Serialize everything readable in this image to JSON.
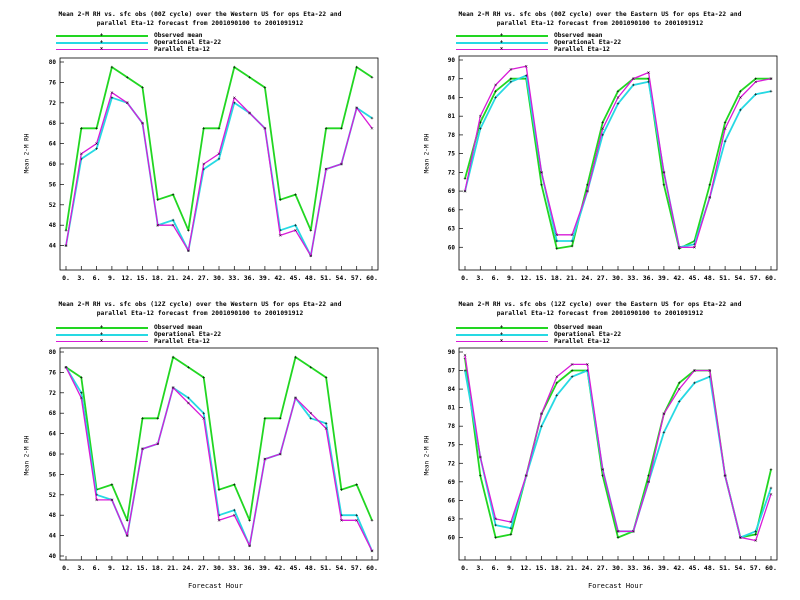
{
  "ylabel": "Mean 2-M RH",
  "xlabel": "Forecast Hour",
  "legend": [
    {
      "name": "Observed mean",
      "color": "#22d622"
    },
    {
      "name": "Operational Eta-22",
      "color": "#26d9e3"
    },
    {
      "name": "Parallel Eta-12",
      "color": "#d81bd8"
    }
  ],
  "x_ticks": [
    "0.",
    "3.",
    "6.",
    "9.",
    "12.",
    "15.",
    "18.",
    "21.",
    "24.",
    "27.",
    "30.",
    "33.",
    "36.",
    "39.",
    "42.",
    "45.",
    "48.",
    "51.",
    "54.",
    "57.",
    "60."
  ],
  "panels": [
    {
      "title_lines": [
        "Mean 2-M RH vs. sfc obs (00Z cycle) over the Western US for ops Eta-22 and",
        "parallel Eta-12 forecast from 2001090100 to 2001091912"
      ],
      "chart_data": {
        "type": "line",
        "x": [
          0,
          3,
          6,
          9,
          12,
          15,
          18,
          21,
          24,
          27,
          30,
          33,
          36,
          39,
          42,
          45,
          48,
          51,
          54,
          57,
          60
        ],
        "ylim": [
          40,
          80
        ],
        "yticks": [
          "44",
          "48",
          "52",
          "56",
          "60",
          "64",
          "68",
          "72",
          "76",
          "80"
        ],
        "series": [
          {
            "name": "Observed mean",
            "values": [
              47,
              67,
              67,
              79,
              77,
              75,
              53,
              54,
              47,
              67,
              67,
              79,
              77,
              75,
              53,
              54,
              47,
              67,
              67,
              79,
              77
            ]
          },
          {
            "name": "Operational Eta-22",
            "values": [
              44,
              61,
              63,
              73,
              72,
              68,
              48,
              49,
              43,
              59,
              61,
              72,
              70,
              67,
              47,
              48,
              42,
              59,
              60,
              71,
              69
            ]
          },
          {
            "name": "Parallel Eta-12",
            "values": [
              44,
              62,
              64,
              74,
              72,
              68,
              48,
              48,
              43,
              60,
              62,
              73,
              70,
              67,
              46,
              47,
              42,
              59,
              60,
              71,
              67
            ]
          }
        ]
      }
    },
    {
      "title_lines": [
        "Mean 2-M RH vs. sfc obs (00Z cycle) over the Eastern US for ops Eta-22 and",
        "parallel Eta-12 forecast from 2001090100 to 2001091912"
      ],
      "chart_data": {
        "type": "line",
        "x": [
          0,
          3,
          6,
          9,
          12,
          15,
          18,
          21,
          24,
          27,
          30,
          33,
          36,
          39,
          42,
          45,
          48,
          51,
          54,
          57,
          60
        ],
        "ylim": [
          57,
          90
        ],
        "yticks": [
          "60",
          "63",
          "66",
          "69",
          "72",
          "75",
          "78",
          "81",
          "84",
          "87",
          "90"
        ],
        "series": [
          {
            "name": "Observed mean",
            "values": [
              71,
              80,
              85,
              87,
              87,
              70,
              59.8,
              60.2,
              70,
              80,
              85,
              87,
              87,
              70,
              59.8,
              61,
              70,
              80,
              85,
              87,
              87
            ]
          },
          {
            "name": "Operational Eta-22",
            "values": [
              69,
              79,
              84,
              86.5,
              87.5,
              72,
              61,
              61,
              69,
              78,
              83,
              86,
              86.5,
              72,
              60,
              60.5,
              68,
              77,
              82,
              84.5,
              85
            ]
          },
          {
            "name": "Parallel Eta-12",
            "values": [
              69,
              81,
              86,
              88.5,
              89,
              72,
              62,
              62,
              69,
              79,
              84,
              87,
              88,
              72,
              60,
              60,
              68,
              79,
              84,
              86.5,
              87
            ]
          }
        ]
      }
    },
    {
      "title_lines": [
        "Mean 2-M RH vs. sfc obs (12Z cycle) over the Western US for ops Eta-22 and",
        "parallel Eta-12 forecast from 2001090100 to 2001091912"
      ],
      "chart_data": {
        "type": "line",
        "x": [
          0,
          3,
          6,
          9,
          12,
          15,
          18,
          21,
          24,
          27,
          30,
          33,
          36,
          39,
          42,
          45,
          48,
          51,
          54,
          57,
          60
        ],
        "ylim": [
          40,
          80
        ],
        "yticks": [
          "40",
          "44",
          "48",
          "52",
          "56",
          "60",
          "64",
          "68",
          "72",
          "76",
          "80"
        ],
        "series": [
          {
            "name": "Observed mean",
            "values": [
              77,
              75,
              53,
              54,
              47,
              67,
              67,
              79,
              77,
              75,
              53,
              54,
              47,
              67,
              67,
              79,
              77,
              75,
              53,
              54,
              47
            ]
          },
          {
            "name": "Operational Eta-22",
            "values": [
              77,
              72,
              52,
              51,
              44,
              61,
              62,
              73,
              71,
              68,
              48,
              49,
              42,
              59,
              60,
              71,
              67,
              66,
              48,
              48,
              41
            ]
          },
          {
            "name": "Parallel Eta-12",
            "values": [
              77,
              71,
              51,
              51,
              44,
              61,
              62,
              73,
              70,
              67,
              47,
              48,
              42,
              59,
              60,
              71,
              68,
              65,
              47,
              47,
              41
            ]
          }
        ]
      }
    },
    {
      "title_lines": [
        "Mean 2-M RH vs. sfc obs (12Z cycle) over the Eastern US for ops Eta-22 and",
        "parallel Eta-12 forecast from 2001090100 to 2001091912"
      ],
      "chart_data": {
        "type": "line",
        "x": [
          0,
          3,
          6,
          9,
          12,
          15,
          18,
          21,
          24,
          27,
          30,
          33,
          36,
          39,
          42,
          45,
          48,
          51,
          54,
          57,
          60
        ],
        "ylim": [
          57,
          90
        ],
        "yticks": [
          "60",
          "63",
          "66",
          "69",
          "72",
          "75",
          "78",
          "81",
          "84",
          "87",
          "90"
        ],
        "series": [
          {
            "name": "Observed mean",
            "values": [
              89,
              70,
              60,
              60.5,
              70,
              80,
              85,
              87,
              87,
              70,
              60,
              61,
              70,
              80,
              85,
              87,
              87,
              70,
              60,
              60.5,
              71
            ]
          },
          {
            "name": "Operational Eta-22",
            "values": [
              87,
              73,
              62,
              61.5,
              70,
              78,
              83,
              86,
              87,
              71,
              61,
              61,
              69,
              77,
              82,
              85,
              86,
              70,
              60,
              61,
              68
            ]
          },
          {
            "name": "Parallel Eta-12",
            "values": [
              89.5,
              73,
              63,
              62.5,
              70,
              80,
              86,
              88,
              88,
              71,
              61,
              61,
              69,
              80,
              84,
              87,
              87,
              70,
              60,
              59.5,
              67
            ]
          }
        ]
      }
    }
  ]
}
